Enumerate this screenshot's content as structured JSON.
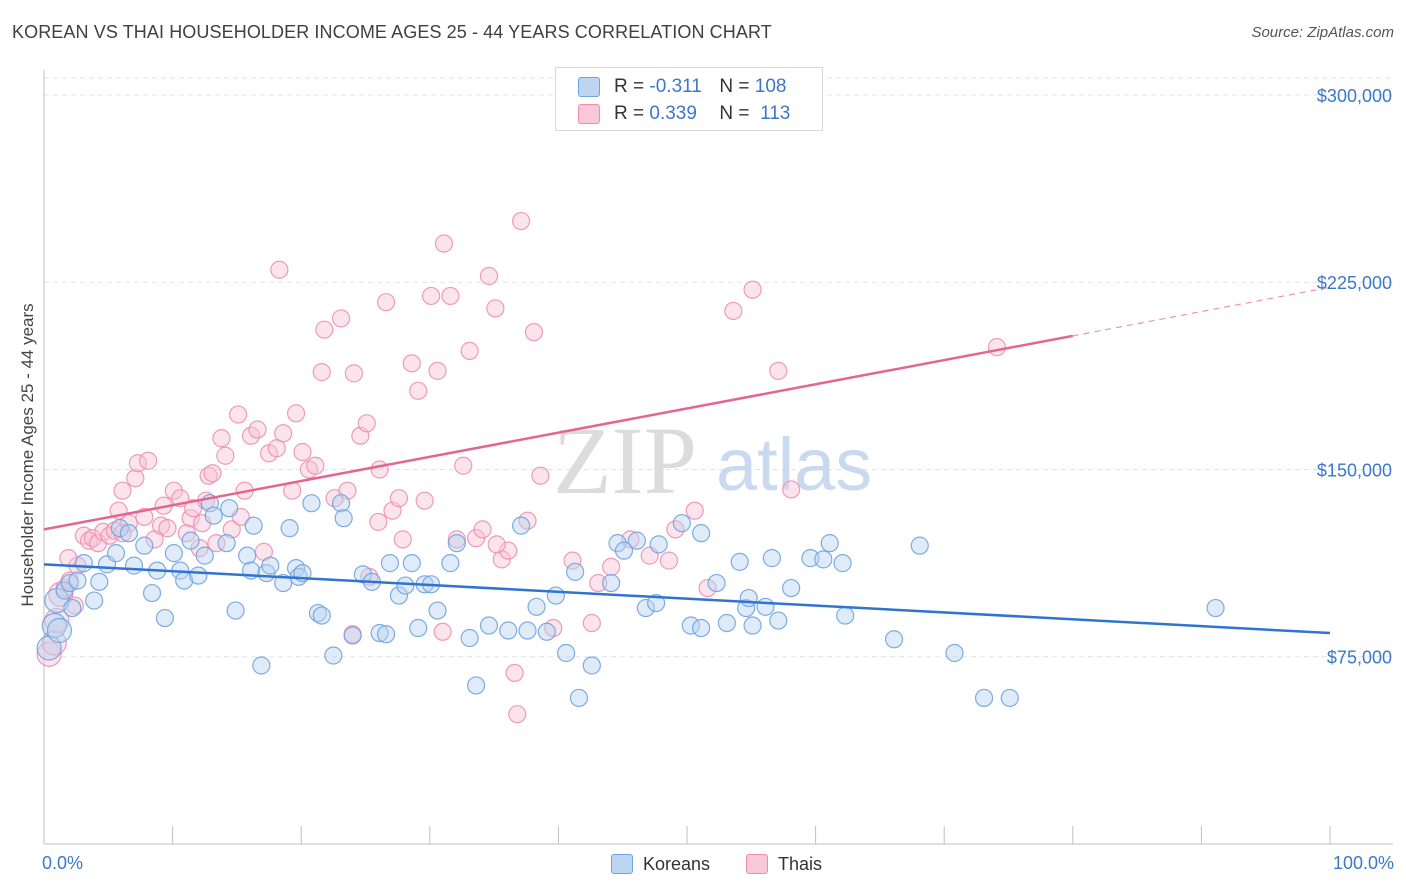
{
  "title": "KOREAN VS THAI HOUSEHOLDER INCOME AGES 25 - 44 YEARS CORRELATION CHART",
  "source": "Source: ZipAtlas.com",
  "watermark": {
    "zip": "ZIP",
    "atlas": "atlas"
  },
  "legend": {
    "korean": {
      "r_label": "R =",
      "r_value": "-0.311",
      "n_label": "N =",
      "n_value": "108",
      "color": "#6fa3e0"
    },
    "thai": {
      "r_label": "R =",
      "r_value": "0.339",
      "n_label": "N =",
      "n_value": "113",
      "color": "#f08aae"
    }
  },
  "bottom_legend": [
    "Koreans",
    "Thais"
  ],
  "chart_data": {
    "type": "scatter",
    "title": "KOREAN VS THAI HOUSEHOLDER INCOME AGES 25 - 44 YEARS CORRELATION CHART",
    "xlabel": "",
    "ylabel": "Householder Income Ages 25 - 44 years",
    "xlim": [
      0,
      100
    ],
    "ylim": [
      0,
      310000
    ],
    "x_tick_labels": [
      "0.0%",
      "100.0%"
    ],
    "y_ticks": [
      75000,
      150000,
      225000,
      300000
    ],
    "y_tick_labels": [
      "$75,000",
      "$150,000",
      "$225,000",
      "$300,000"
    ],
    "grid": true,
    "legend_position": "top-center",
    "series": [
      {
        "name": "Koreans",
        "color": "#6fa3e0",
        "r": -0.311,
        "n": 108,
        "trendline": {
          "x": [
            0,
            100
          ],
          "y": [
            112000,
            84500
          ]
        },
        "points": [
          [
            0.4,
            78500
          ],
          [
            0.8,
            87500
          ],
          [
            1.0,
            97500
          ],
          [
            1.6,
            101500
          ],
          [
            2.0,
            104500
          ],
          [
            2.6,
            105500
          ],
          [
            3.1,
            112500
          ],
          [
            3.9,
            97500
          ],
          [
            4.3,
            105000
          ],
          [
            4.9,
            112000
          ],
          [
            5.6,
            116500
          ],
          [
            5.9,
            126500
          ],
          [
            7.0,
            111500
          ],
          [
            6.6,
            124500
          ],
          [
            7.8,
            119500
          ],
          [
            8.4,
            100500
          ],
          [
            8.8,
            109500
          ],
          [
            9.4,
            90500
          ],
          [
            10.1,
            116500
          ],
          [
            10.6,
            109500
          ],
          [
            10.9,
            105500
          ],
          [
            11.4,
            121500
          ],
          [
            12.0,
            107500
          ],
          [
            12.5,
            115500
          ],
          [
            12.9,
            136500
          ],
          [
            13.2,
            131500
          ],
          [
            14.2,
            120500
          ],
          [
            14.4,
            134500
          ],
          [
            14.9,
            93500
          ],
          [
            15.8,
            115500
          ],
          [
            16.1,
            109500
          ],
          [
            16.3,
            127500
          ],
          [
            16.9,
            71500
          ],
          [
            17.3,
            108500
          ],
          [
            17.6,
            111500
          ],
          [
            18.6,
            104500
          ],
          [
            19.1,
            126500
          ],
          [
            19.6,
            110500
          ],
          [
            19.8,
            107000
          ],
          [
            20.1,
            108500
          ],
          [
            20.8,
            136500
          ],
          [
            21.3,
            92500
          ],
          [
            21.6,
            91500
          ],
          [
            22.5,
            75500
          ],
          [
            23.1,
            136500
          ],
          [
            23.3,
            130500
          ],
          [
            24.0,
            83500
          ],
          [
            24.8,
            108000
          ],
          [
            25.5,
            105000
          ],
          [
            26.1,
            84500
          ],
          [
            26.6,
            84000
          ],
          [
            26.9,
            112500
          ],
          [
            27.6,
            99500
          ],
          [
            28.1,
            103500
          ],
          [
            28.6,
            112500
          ],
          [
            29.1,
            86500
          ],
          [
            29.6,
            104000
          ],
          [
            30.1,
            104000
          ],
          [
            30.6,
            93500
          ],
          [
            31.6,
            112500
          ],
          [
            32.1,
            120500
          ],
          [
            33.1,
            82500
          ],
          [
            33.6,
            63500
          ],
          [
            34.6,
            87500
          ],
          [
            36.1,
            85500
          ],
          [
            37.1,
            127500
          ],
          [
            37.6,
            85500
          ],
          [
            38.3,
            95000
          ],
          [
            39.1,
            85000
          ],
          [
            39.8,
            99500
          ],
          [
            40.6,
            76500
          ],
          [
            41.3,
            109000
          ],
          [
            41.6,
            58500
          ],
          [
            42.6,
            71500
          ],
          [
            44.1,
            104500
          ],
          [
            44.6,
            120500
          ],
          [
            45.1,
            117500
          ],
          [
            46.1,
            121500
          ],
          [
            46.8,
            94500
          ],
          [
            47.6,
            96500
          ],
          [
            47.8,
            120000
          ],
          [
            49.6,
            128500
          ],
          [
            50.3,
            87500
          ],
          [
            51.1,
            86500
          ],
          [
            51.1,
            124500
          ],
          [
            52.3,
            104500
          ],
          [
            53.1,
            88500
          ],
          [
            54.1,
            113000
          ],
          [
            54.6,
            94500
          ],
          [
            54.8,
            98500
          ],
          [
            55.1,
            87500
          ],
          [
            56.1,
            95000
          ],
          [
            56.6,
            114500
          ],
          [
            57.1,
            89500
          ],
          [
            58.1,
            102500
          ],
          [
            59.6,
            114500
          ],
          [
            60.6,
            114000
          ],
          [
            61.1,
            120500
          ],
          [
            62.1,
            112500
          ],
          [
            62.3,
            91500
          ],
          [
            66.1,
            82000
          ],
          [
            68.1,
            119500
          ],
          [
            70.8,
            76500
          ],
          [
            73.1,
            58500
          ],
          [
            75.1,
            58500
          ],
          [
            91.1,
            94500
          ],
          [
            1.2,
            85500
          ],
          [
            2.2,
            94500
          ]
        ]
      },
      {
        "name": "Thais",
        "color": "#f08aae",
        "r": 0.339,
        "n": 113,
        "trendline": {
          "x": [
            0,
            80,
            100
          ],
          "y": [
            126000,
            203500,
            223000
          ]
        },
        "points": [
          [
            0.4,
            76000
          ],
          [
            0.8,
            80500
          ],
          [
            1.0,
            89500
          ],
          [
            1.3,
            100000
          ],
          [
            1.6,
            102500
          ],
          [
            2.0,
            105500
          ],
          [
            2.6,
            111500
          ],
          [
            3.1,
            123500
          ],
          [
            3.5,
            121500
          ],
          [
            3.8,
            122500
          ],
          [
            4.2,
            120500
          ],
          [
            4.6,
            125000
          ],
          [
            5.1,
            123500
          ],
          [
            5.5,
            125500
          ],
          [
            5.8,
            133500
          ],
          [
            6.1,
            141500
          ],
          [
            6.6,
            128500
          ],
          [
            7.1,
            146500
          ],
          [
            7.3,
            152500
          ],
          [
            7.8,
            131000
          ],
          [
            8.1,
            153500
          ],
          [
            8.6,
            122000
          ],
          [
            9.1,
            127500
          ],
          [
            9.6,
            126500
          ],
          [
            10.1,
            141500
          ],
          [
            10.6,
            138500
          ],
          [
            11.1,
            124500
          ],
          [
            11.4,
            130500
          ],
          [
            11.6,
            134500
          ],
          [
            12.1,
            118500
          ],
          [
            12.3,
            128500
          ],
          [
            12.6,
            137500
          ],
          [
            12.8,
            147500
          ],
          [
            13.1,
            148500
          ],
          [
            13.4,
            120500
          ],
          [
            13.8,
            162500
          ],
          [
            14.1,
            155500
          ],
          [
            14.6,
            126000
          ],
          [
            15.1,
            172000
          ],
          [
            15.3,
            131000
          ],
          [
            15.6,
            141500
          ],
          [
            16.1,
            163500
          ],
          [
            16.6,
            166000
          ],
          [
            17.1,
            117000
          ],
          [
            17.5,
            156500
          ],
          [
            18.1,
            158500
          ],
          [
            18.3,
            230000
          ],
          [
            18.6,
            164500
          ],
          [
            19.3,
            141500
          ],
          [
            19.6,
            172500
          ],
          [
            20.1,
            157000
          ],
          [
            20.6,
            150000
          ],
          [
            21.1,
            151500
          ],
          [
            21.6,
            189000
          ],
          [
            21.8,
            206000
          ],
          [
            22.6,
            138500
          ],
          [
            23.1,
            210500
          ],
          [
            23.6,
            141500
          ],
          [
            24.1,
            188500
          ],
          [
            24.6,
            163500
          ],
          [
            25.1,
            168500
          ],
          [
            25.3,
            107000
          ],
          [
            26.1,
            150000
          ],
          [
            26.6,
            217000
          ],
          [
            27.1,
            133500
          ],
          [
            27.6,
            138500
          ],
          [
            27.9,
            122000
          ],
          [
            28.6,
            192500
          ],
          [
            29.1,
            181500
          ],
          [
            29.6,
            137500
          ],
          [
            30.1,
            219500
          ],
          [
            30.6,
            189500
          ],
          [
            31.1,
            240500
          ],
          [
            31.6,
            219500
          ],
          [
            32.1,
            122000
          ],
          [
            32.6,
            151500
          ],
          [
            33.1,
            197500
          ],
          [
            33.6,
            122500
          ],
          [
            34.1,
            126000
          ],
          [
            34.6,
            227500
          ],
          [
            35.1,
            214500
          ],
          [
            35.6,
            114000
          ],
          [
            36.1,
            117500
          ],
          [
            36.6,
            68500
          ],
          [
            36.8,
            52000
          ],
          [
            37.1,
            249500
          ],
          [
            37.6,
            129500
          ],
          [
            38.1,
            205000
          ],
          [
            38.6,
            147500
          ],
          [
            39.6,
            86500
          ],
          [
            41.1,
            113500
          ],
          [
            42.6,
            88500
          ],
          [
            43.1,
            104500
          ],
          [
            44.1,
            111000
          ],
          [
            45.6,
            122000
          ],
          [
            47.1,
            115500
          ],
          [
            48.6,
            113500
          ],
          [
            49.1,
            126000
          ],
          [
            50.6,
            133500
          ],
          [
            51.6,
            102500
          ],
          [
            53.6,
            213500
          ],
          [
            55.1,
            222000
          ],
          [
            57.1,
            189500
          ],
          [
            58.1,
            142000
          ],
          [
            74.1,
            199000
          ],
          [
            1.9,
            114500
          ],
          [
            2.4,
            95500
          ],
          [
            6.1,
            124500
          ],
          [
            9.3,
            135500
          ],
          [
            24.0,
            84000
          ],
          [
            26.0,
            129000
          ],
          [
            31.0,
            85000
          ],
          [
            35.2,
            120000
          ]
        ]
      }
    ]
  }
}
